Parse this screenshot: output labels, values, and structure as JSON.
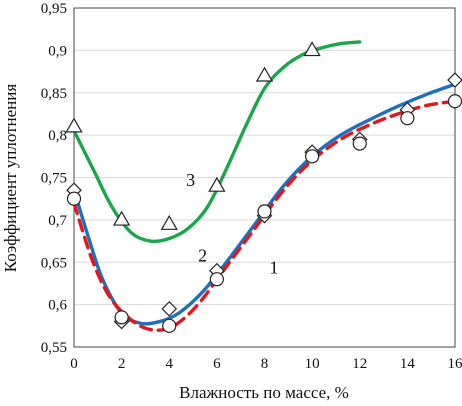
{
  "chart_data": {
    "type": "line",
    "xlabel": "Влажность по массе, %",
    "ylabel": "Коэффициент уплотнения",
    "xlim": [
      0,
      16
    ],
    "ylim": [
      0.55,
      0.95
    ],
    "x_ticks": [
      "0",
      "2",
      "4",
      "6",
      "8",
      "10",
      "12",
      "14",
      "16"
    ],
    "y_ticks": [
      "0,55",
      "0,6",
      "0,65",
      "0,7",
      "0,75",
      "0,8",
      "0,85",
      "0,9",
      "0,95"
    ],
    "grid": "horizontal",
    "series": [
      {
        "name": "1",
        "color": "#e8141b",
        "line_style": "dashed",
        "marker": "circle",
        "points": [
          [
            0,
            0.725
          ],
          [
            2,
            0.585
          ],
          [
            4,
            0.575
          ],
          [
            6,
            0.63
          ],
          [
            8,
            0.71
          ],
          [
            10,
            0.775
          ],
          [
            12,
            0.79
          ],
          [
            14,
            0.82
          ],
          [
            16,
            0.84
          ]
        ],
        "curve": [
          [
            0,
            0.72
          ],
          [
            0.8,
            0.65
          ],
          [
            1.6,
            0.605
          ],
          [
            2.6,
            0.578
          ],
          [
            3.4,
            0.57
          ],
          [
            4.2,
            0.575
          ],
          [
            5.2,
            0.6
          ],
          [
            6.4,
            0.645
          ],
          [
            7.6,
            0.69
          ],
          [
            8.8,
            0.735
          ],
          [
            10,
            0.77
          ],
          [
            11.2,
            0.795
          ],
          [
            12.4,
            0.812
          ],
          [
            13.6,
            0.825
          ],
          [
            14.8,
            0.835
          ],
          [
            16,
            0.84
          ]
        ]
      },
      {
        "name": "2",
        "color": "#1f6fbf",
        "line_style": "solid",
        "marker": "diamond",
        "points": [
          [
            0,
            0.735
          ],
          [
            2,
            0.58
          ],
          [
            4,
            0.595
          ],
          [
            6,
            0.64
          ],
          [
            8,
            0.705
          ],
          [
            10,
            0.78
          ],
          [
            12,
            0.795
          ],
          [
            14,
            0.83
          ],
          [
            16,
            0.865
          ]
        ],
        "curve": [
          [
            0,
            0.735
          ],
          [
            0.6,
            0.68
          ],
          [
            1.2,
            0.63
          ],
          [
            2,
            0.59
          ],
          [
            2.8,
            0.578
          ],
          [
            3.6,
            0.58
          ],
          [
            4.4,
            0.59
          ],
          [
            5.4,
            0.615
          ],
          [
            6.4,
            0.65
          ],
          [
            7.6,
            0.695
          ],
          [
            8.8,
            0.74
          ],
          [
            10,
            0.775
          ],
          [
            11.2,
            0.8
          ],
          [
            12.4,
            0.818
          ],
          [
            13.6,
            0.834
          ],
          [
            14.8,
            0.848
          ],
          [
            16,
            0.86
          ]
        ]
      },
      {
        "name": "3",
        "color": "#1aa64a",
        "line_style": "solid",
        "marker": "triangle",
        "points": [
          [
            0,
            0.81
          ],
          [
            2,
            0.7
          ],
          [
            4,
            0.695
          ],
          [
            6,
            0.74
          ],
          [
            8,
            0.87
          ],
          [
            10,
            0.9
          ]
        ],
        "curve": [
          [
            0,
            0.805
          ],
          [
            0.8,
            0.76
          ],
          [
            1.6,
            0.715
          ],
          [
            2.4,
            0.685
          ],
          [
            3.2,
            0.675
          ],
          [
            4,
            0.678
          ],
          [
            4.8,
            0.69
          ],
          [
            5.6,
            0.715
          ],
          [
            6.4,
            0.76
          ],
          [
            7.2,
            0.81
          ],
          [
            8,
            0.855
          ],
          [
            8.8,
            0.88
          ],
          [
            9.6,
            0.895
          ],
          [
            10.4,
            0.903
          ],
          [
            11.2,
            0.908
          ],
          [
            12,
            0.91
          ]
        ]
      }
    ],
    "curve_labels": [
      {
        "text": "1",
        "x": 8.4,
        "y": 0.637
      },
      {
        "text": "2",
        "x": 5.4,
        "y": 0.651
      },
      {
        "text": "3",
        "x": 4.9,
        "y": 0.74
      }
    ]
  }
}
